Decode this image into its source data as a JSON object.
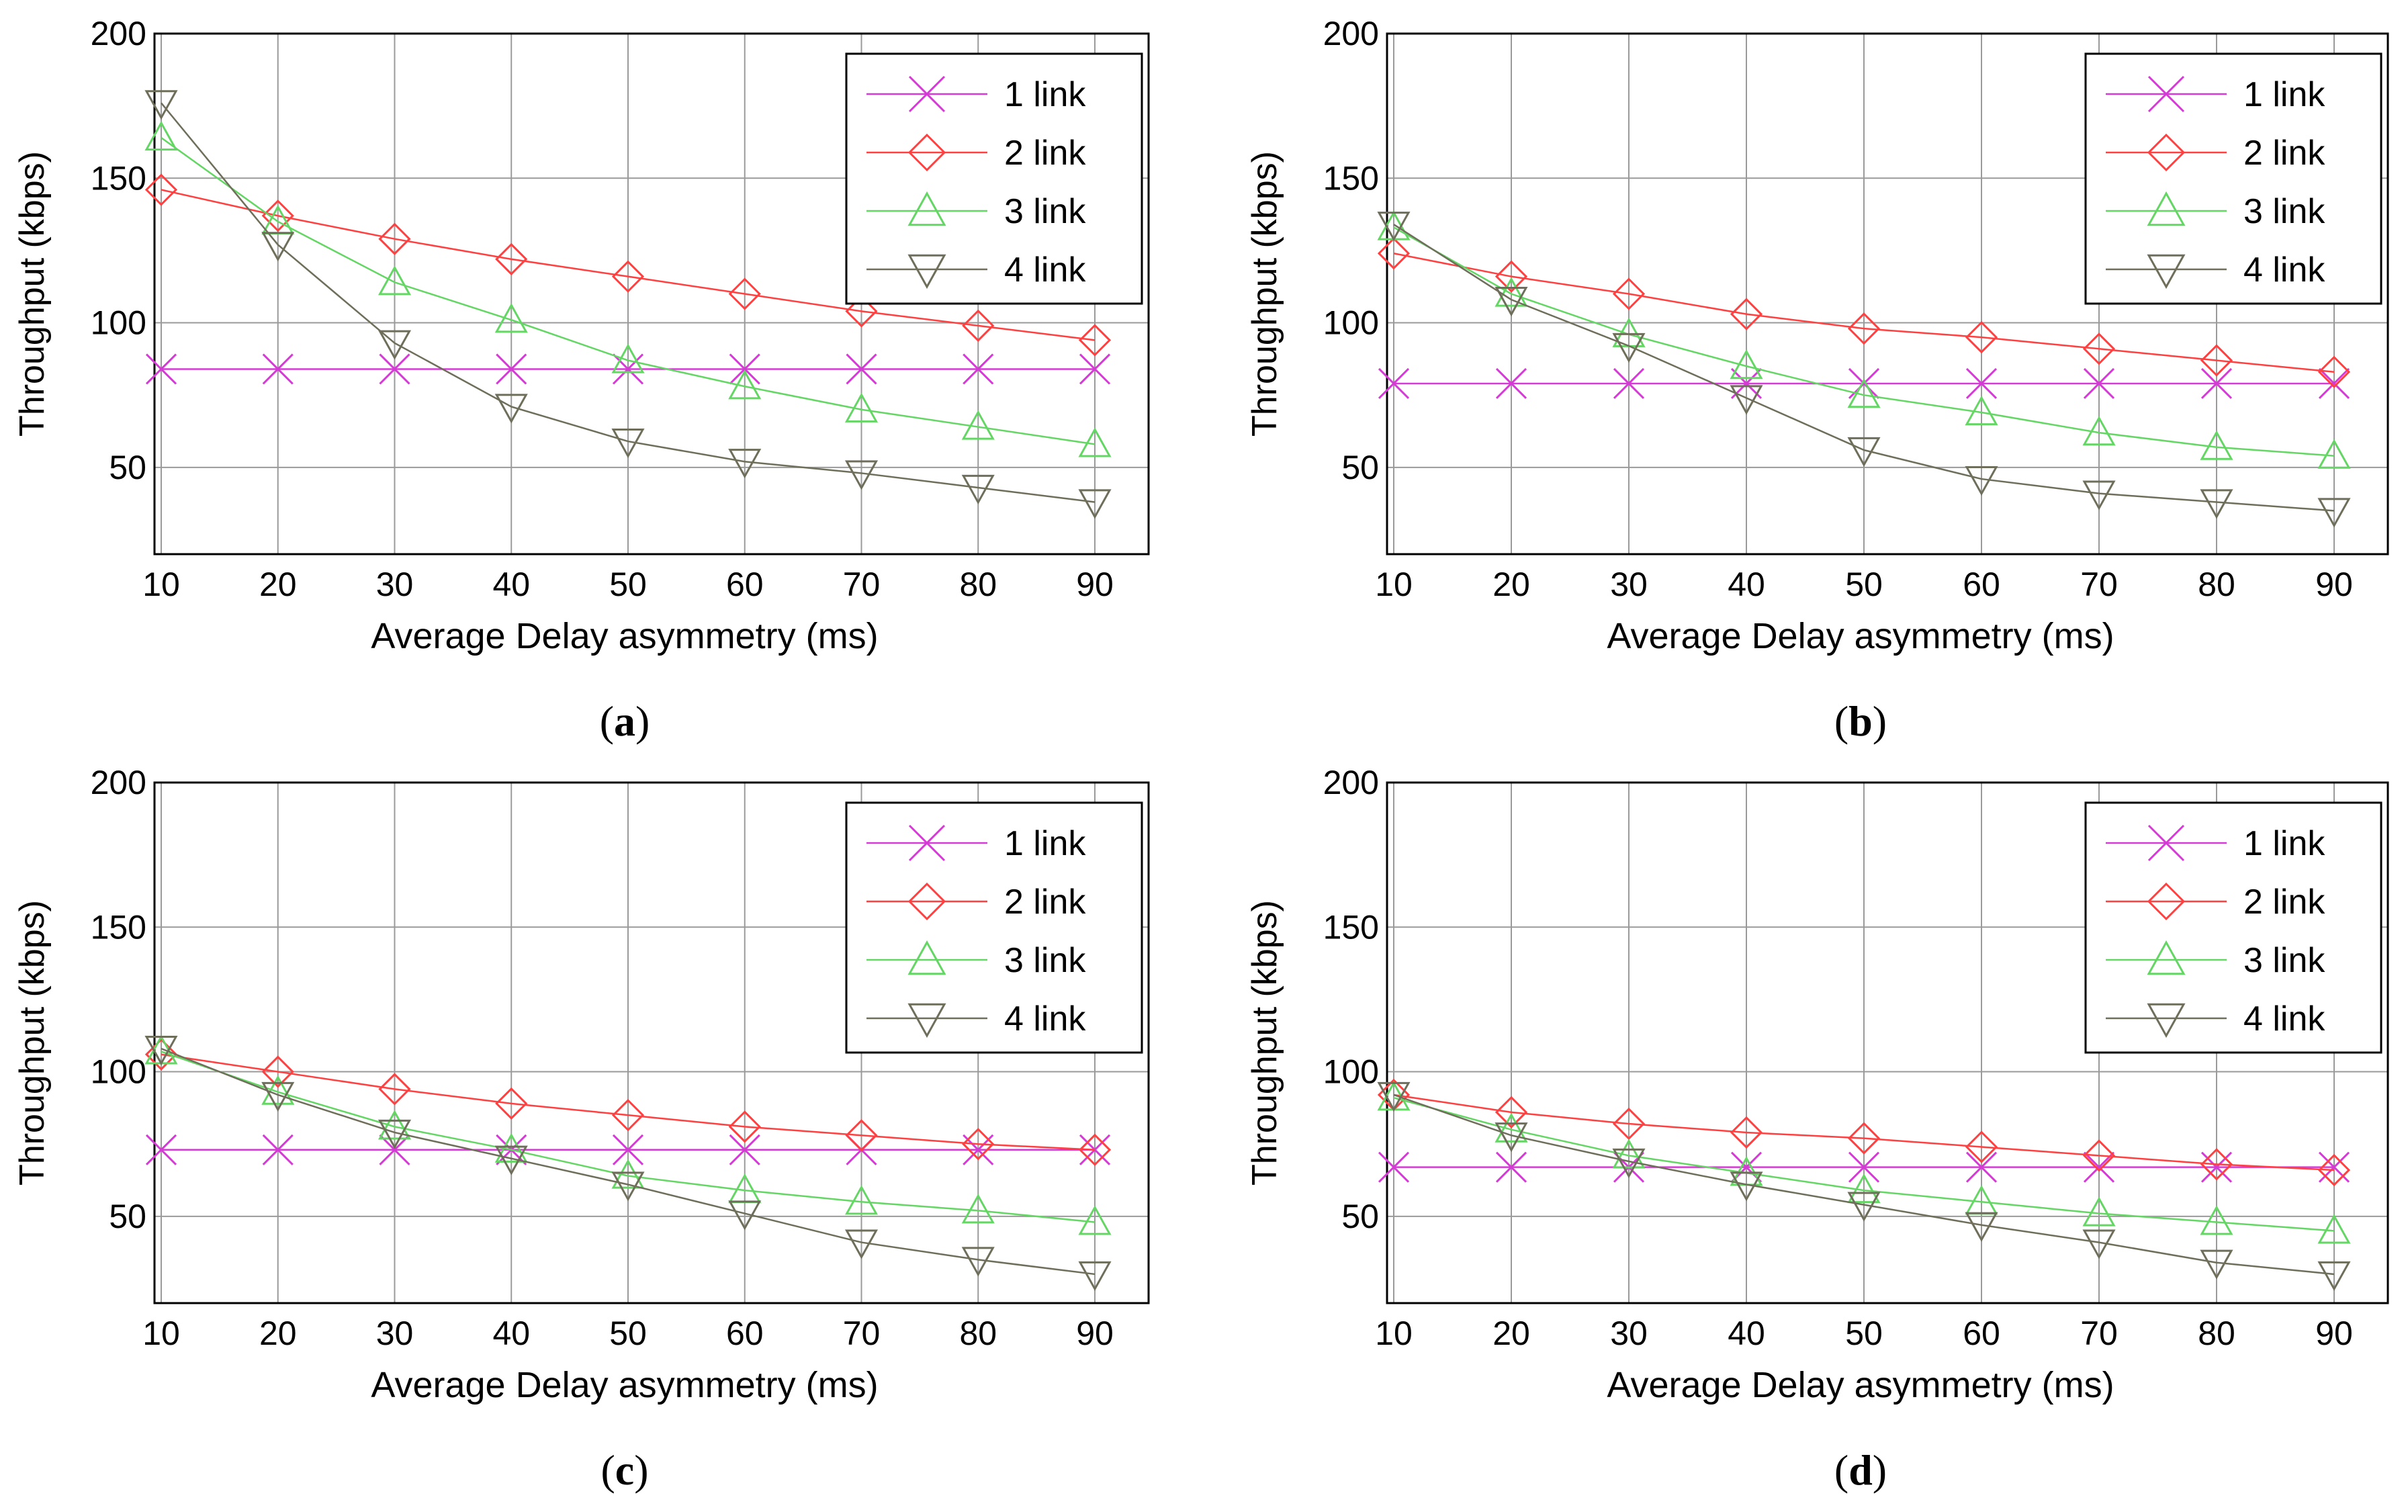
{
  "colors": {
    "1 link": "#d63ad6",
    "2 link": "#ff4040",
    "3 link": "#63d663",
    "4 link": "#6e6e5a",
    "grid": "#9a9a9a",
    "axis": "#000000"
  },
  "chart_data": [
    {
      "type": "line",
      "caption": "a",
      "xlabel": "Average Delay asymmetry (ms)",
      "ylabel": "Throughput (kbps)",
      "x": [
        10,
        20,
        30,
        40,
        50,
        60,
        70,
        80,
        90
      ],
      "xlim": [
        10,
        90
      ],
      "ylim": [
        20,
        200
      ],
      "yticks": [
        50,
        100,
        150,
        200
      ],
      "grid": true,
      "legend_position": "top-right",
      "series": [
        {
          "name": "1 link",
          "marker": "x",
          "values": [
            84,
            84,
            84,
            84,
            84,
            84,
            84,
            84,
            84
          ]
        },
        {
          "name": "2 link",
          "marker": "diamond",
          "values": [
            146,
            137,
            129,
            122,
            116,
            110,
            104,
            99,
            94
          ]
        },
        {
          "name": "3 link",
          "marker": "triangle-up",
          "values": [
            164,
            135,
            114,
            101,
            87,
            78,
            70,
            64,
            58
          ]
        },
        {
          "name": "4 link",
          "marker": "triangle-down",
          "values": [
            176,
            127,
            93,
            71,
            59,
            52,
            48,
            43,
            38
          ]
        }
      ]
    },
    {
      "type": "line",
      "caption": "b",
      "xlabel": "Average Delay asymmetry (ms)",
      "ylabel": "Throughput (kbps)",
      "x": [
        10,
        20,
        30,
        40,
        50,
        60,
        70,
        80,
        90
      ],
      "xlim": [
        10,
        90
      ],
      "ylim": [
        20,
        200
      ],
      "yticks": [
        50,
        100,
        150,
        200
      ],
      "grid": true,
      "legend_position": "top-right",
      "series": [
        {
          "name": "1 link",
          "marker": "x",
          "values": [
            79,
            79,
            79,
            79,
            79,
            79,
            79,
            79,
            79
          ]
        },
        {
          "name": "2 link",
          "marker": "diamond",
          "values": [
            124,
            116,
            110,
            103,
            98,
            95,
            91,
            87,
            83
          ]
        },
        {
          "name": "3 link",
          "marker": "triangle-up",
          "values": [
            133,
            110,
            96,
            85,
            75,
            69,
            62,
            57,
            54
          ]
        },
        {
          "name": "4 link",
          "marker": "triangle-down",
          "values": [
            134,
            108,
            92,
            74,
            56,
            46,
            41,
            38,
            35
          ]
        }
      ]
    },
    {
      "type": "line",
      "caption": "c",
      "xlabel": "Average Delay asymmetry (ms)",
      "ylabel": "Throughput (kbps)",
      "x": [
        10,
        20,
        30,
        40,
        50,
        60,
        70,
        80,
        90
      ],
      "xlim": [
        10,
        90
      ],
      "ylim": [
        20,
        200
      ],
      "yticks": [
        50,
        100,
        150,
        200
      ],
      "grid": true,
      "legend_position": "top-right",
      "series": [
        {
          "name": "1 link",
          "marker": "x",
          "values": [
            73,
            73,
            73,
            73,
            73,
            73,
            73,
            73,
            73
          ]
        },
        {
          "name": "2 link",
          "marker": "diamond",
          "values": [
            106,
            100,
            94,
            89,
            85,
            81,
            78,
            75,
            73
          ]
        },
        {
          "name": "3 link",
          "marker": "triangle-up",
          "values": [
            107,
            93,
            81,
            73,
            64,
            59,
            55,
            52,
            48
          ]
        },
        {
          "name": "4 link",
          "marker": "triangle-down",
          "values": [
            108,
            92,
            79,
            70,
            61,
            51,
            41,
            35,
            30
          ]
        }
      ]
    },
    {
      "type": "line",
      "caption": "d",
      "xlabel": "Average Delay asymmetry (ms)",
      "ylabel": "Throughput (kbps)",
      "x": [
        10,
        20,
        30,
        40,
        50,
        60,
        70,
        80,
        90
      ],
      "xlim": [
        10,
        90
      ],
      "ylim": [
        20,
        200
      ],
      "yticks": [
        50,
        100,
        150,
        200
      ],
      "grid": true,
      "legend_position": "top-right",
      "series": [
        {
          "name": "1 link",
          "marker": "x",
          "values": [
            67,
            67,
            67,
            67,
            67,
            67,
            67,
            67,
            67
          ]
        },
        {
          "name": "2 link",
          "marker": "diamond",
          "values": [
            92,
            86,
            82,
            79,
            77,
            74,
            71,
            68,
            66
          ]
        },
        {
          "name": "3 link",
          "marker": "triangle-up",
          "values": [
            91,
            80,
            71,
            65,
            59,
            55,
            51,
            48,
            45
          ]
        },
        {
          "name": "4 link",
          "marker": "triangle-down",
          "values": [
            92,
            78,
            69,
            61,
            54,
            47,
            41,
            34,
            30
          ]
        }
      ]
    }
  ]
}
